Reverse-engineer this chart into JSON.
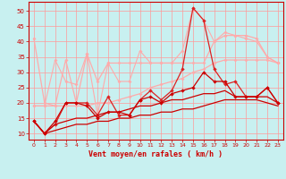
{
  "x": [
    0,
    1,
    2,
    3,
    4,
    5,
    6,
    7,
    8,
    9,
    10,
    11,
    12,
    13,
    14,
    15,
    16,
    17,
    18,
    19,
    20,
    21,
    22,
    23
  ],
  "line_pink_upper": [
    41,
    20,
    19,
    34,
    20,
    36,
    27,
    33,
    33,
    33,
    33,
    33,
    33,
    33,
    33,
    33,
    33,
    40,
    42,
    42,
    42,
    41,
    35,
    33
  ],
  "line_pink_lower": [
    19,
    19,
    19,
    19,
    19,
    19,
    20,
    20,
    21,
    22,
    23,
    25,
    26,
    27,
    28,
    30,
    31,
    33,
    34,
    34,
    34,
    34,
    34,
    33
  ],
  "line_pink_scatter": [
    19,
    19,
    34,
    27,
    26,
    36,
    16,
    33,
    27,
    27,
    37,
    33,
    33,
    33,
    37,
    51,
    47,
    40,
    43,
    42,
    41,
    40,
    35,
    33
  ],
  "line_red_scatter": [
    14,
    10,
    13,
    20,
    20,
    20,
    16,
    22,
    16,
    16,
    21,
    24,
    21,
    24,
    31,
    51,
    47,
    31,
    26,
    27,
    22,
    22,
    25,
    20
  ],
  "line_dark_scatter": [
    14,
    10,
    14,
    20,
    20,
    19,
    15,
    17,
    17,
    16,
    21,
    22,
    20,
    23,
    24,
    25,
    30,
    27,
    27,
    22,
    22,
    22,
    25,
    20
  ],
  "line_dark_trend1": [
    14,
    10,
    13,
    14,
    15,
    15,
    16,
    17,
    17,
    18,
    19,
    19,
    20,
    21,
    21,
    22,
    23,
    23,
    24,
    22,
    22,
    22,
    22,
    20
  ],
  "line_dark_trend2": [
    14,
    10,
    11,
    12,
    13,
    13,
    14,
    14,
    15,
    15,
    16,
    16,
    17,
    17,
    18,
    18,
    19,
    20,
    21,
    21,
    21,
    21,
    20,
    19
  ],
  "xlim": [
    -0.5,
    23.5
  ],
  "ylim": [
    8,
    53
  ],
  "yticks": [
    10,
    15,
    20,
    25,
    30,
    35,
    40,
    45,
    50
  ],
  "xticks": [
    0,
    1,
    2,
    3,
    4,
    5,
    6,
    7,
    8,
    9,
    10,
    11,
    12,
    13,
    14,
    15,
    16,
    17,
    18,
    19,
    20,
    21,
    22,
    23
  ],
  "xlabel": "Vent moyen/en rafales ( km/h )",
  "background_color": "#c8f0f0",
  "grid_color": "#ff9999",
  "color_pink": "#ffaaaa",
  "color_midred": "#ff7777",
  "color_red": "#dd2222",
  "color_darkred": "#cc0000"
}
